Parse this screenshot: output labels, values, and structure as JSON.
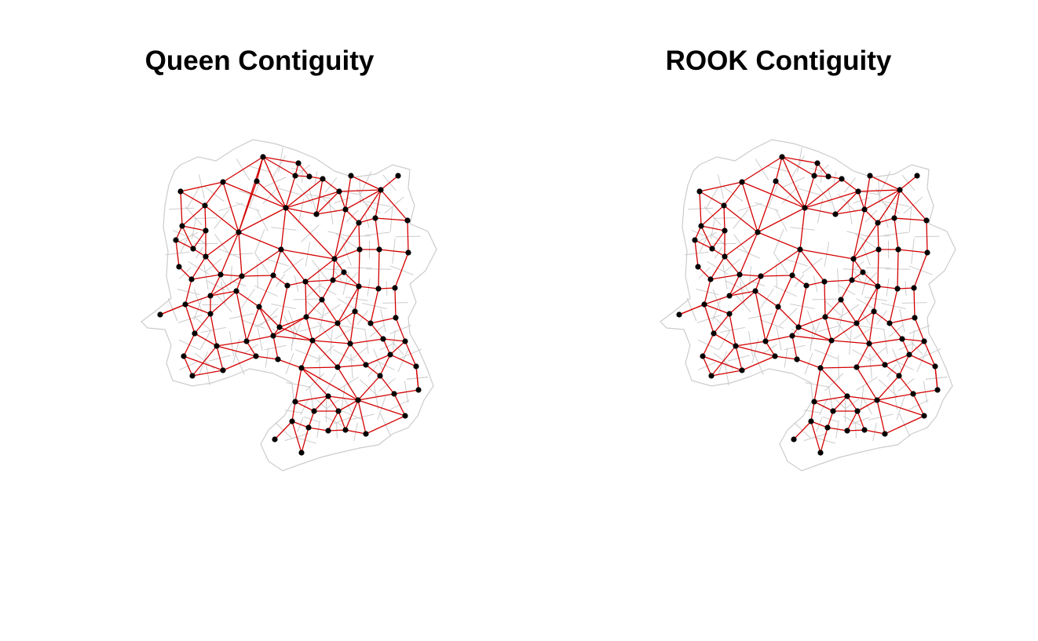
{
  "panels": [
    {
      "title": "Queen Contiguity"
    },
    {
      "title": "ROOK Contiguity"
    }
  ],
  "colors": {
    "background": "#ffffff",
    "boundary": "#cccccc",
    "edge": "#d40000",
    "node": "#000000",
    "title": "#000000"
  }
}
